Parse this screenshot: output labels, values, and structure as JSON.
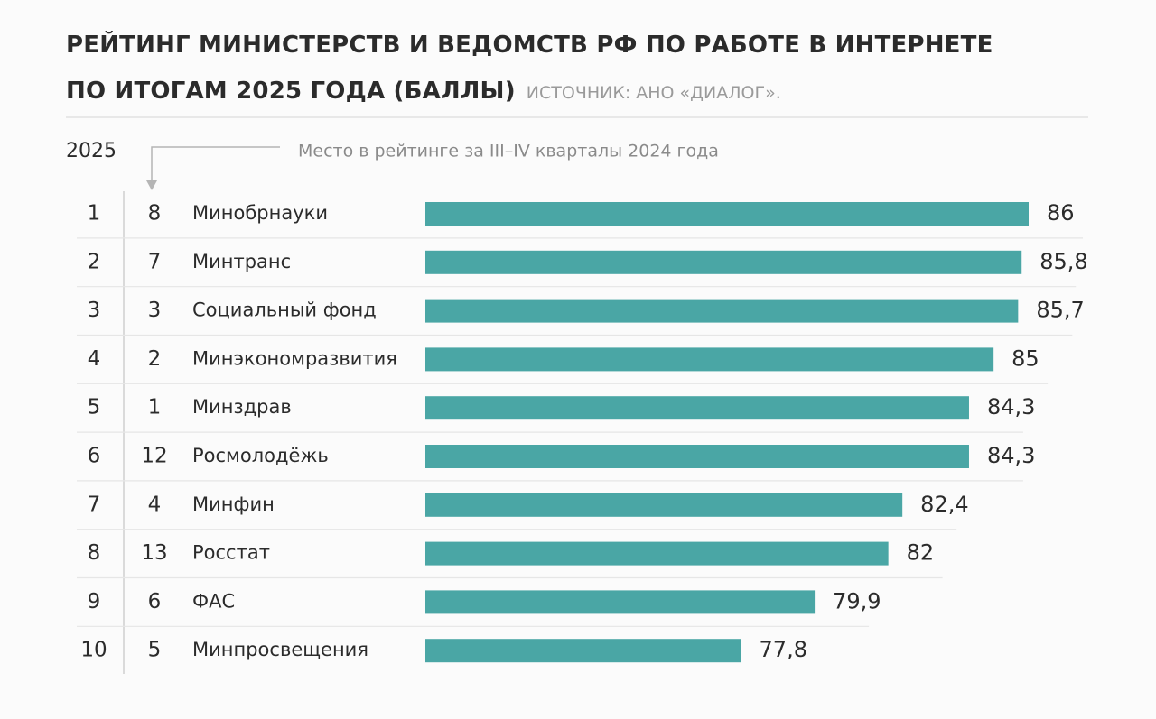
{
  "chart_data": {
    "type": "bar",
    "title": "РЕЙТИНГ МИНИСТЕРСТВ И ВЕДОМСТВ РФ ПО РАБОТЕ В ИНТЕРНЕТЕ ПО ИТОГАМ 2025 ГОДА (БАЛЛЫ)",
    "source": "ИСТОЧНИК: АНО «ДИАЛОГ».",
    "rank_header": "2025",
    "previous_rank_header": "Место в рейтинге за III–IV кварталы 2024 года",
    "ranks": [
      1,
      2,
      3,
      4,
      5,
      6,
      7,
      8,
      9,
      10
    ],
    "previous_ranks": [
      8,
      7,
      3,
      2,
      1,
      12,
      4,
      13,
      6,
      5
    ],
    "categories": [
      "Минобрнауки",
      "Минтранс",
      "Социальный фонд",
      "Минэкономразвития",
      "Минздрав",
      "Росмолодёжь",
      "Минфин",
      "Росстат",
      "ФАС",
      "Минпросвещения"
    ],
    "values": [
      86,
      85.8,
      85.7,
      85,
      84.3,
      84.3,
      82.4,
      82,
      79.9,
      77.8
    ],
    "value_labels": [
      "86",
      "85,8",
      "85,7",
      "85",
      "84,3",
      "84,3",
      "82,4",
      "82",
      "79,9",
      "77,8"
    ],
    "color": "#4aa6a5",
    "xlim": [
      68.8,
      86
    ]
  }
}
